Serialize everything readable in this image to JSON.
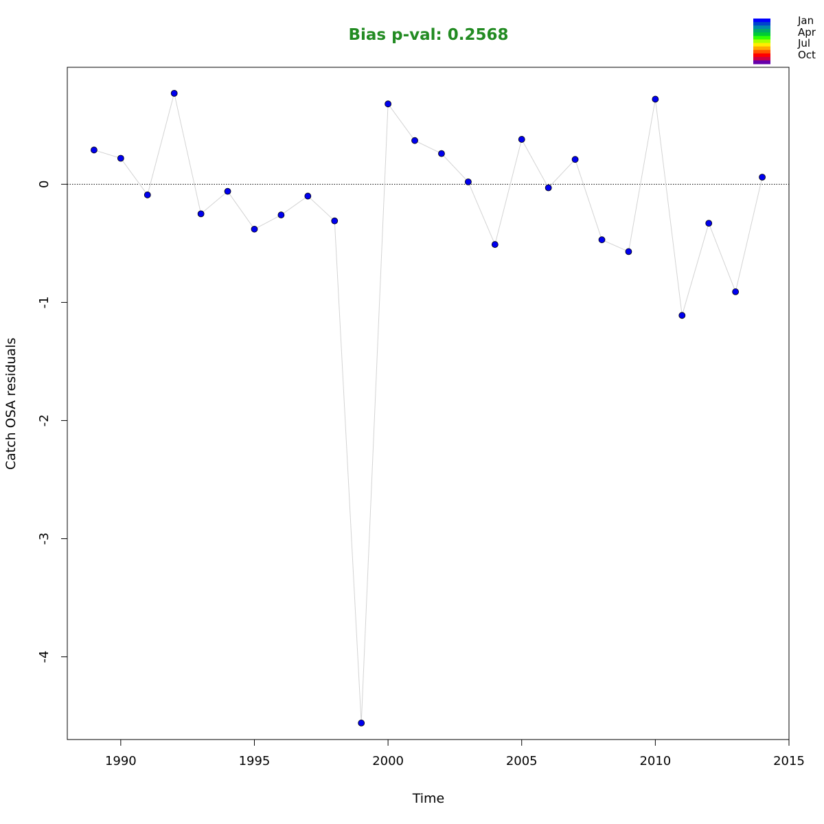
{
  "chart_data": {
    "type": "scatter",
    "title": "Bias p-val: 0.2568",
    "title_color": "#228b22",
    "xlabel": "Time",
    "ylabel": "Catch OSA residuals",
    "xlim": [
      1988,
      2015
    ],
    "ylim": [
      -4.7,
      0.99
    ],
    "xticks": [
      1990,
      1995,
      2000,
      2005,
      2010,
      2015
    ],
    "yticks": [
      0,
      -1,
      -2,
      -3,
      -4
    ],
    "reference_line": {
      "y": 0,
      "style": "dotted"
    },
    "connector_color": "#d3d3d3",
    "point_color": "#0000ee",
    "grid": false,
    "x": [
      1989,
      1990,
      1991,
      1992,
      1993,
      1994,
      1995,
      1996,
      1997,
      1998,
      1999,
      2000,
      2001,
      2002,
      2003,
      2004,
      2005,
      2006,
      2007,
      2008,
      2009,
      2010,
      2011,
      2012,
      2013,
      2014
    ],
    "y": [
      0.29,
      0.22,
      -0.09,
      0.77,
      -0.25,
      -0.06,
      -0.38,
      -0.26,
      -0.1,
      -0.31,
      -4.56,
      0.68,
      0.37,
      0.26,
      0.02,
      -0.51,
      0.38,
      -0.03,
      0.21,
      -0.47,
      -0.57,
      0.72,
      -1.11,
      -0.33,
      -0.91,
      0.06
    ],
    "legend": {
      "position": "top-right",
      "labels": [
        "Jan",
        "Apr",
        "Jul",
        "Oct"
      ],
      "colors": [
        "#0000ff",
        "#0044cc",
        "#0088aa",
        "#00aa66",
        "#00cc33",
        "#33ff00",
        "#aaff00",
        "#ffee00",
        "#ffaa00",
        "#ff5500",
        "#ff0000",
        "#cc0044",
        "#6600aa"
      ]
    }
  }
}
